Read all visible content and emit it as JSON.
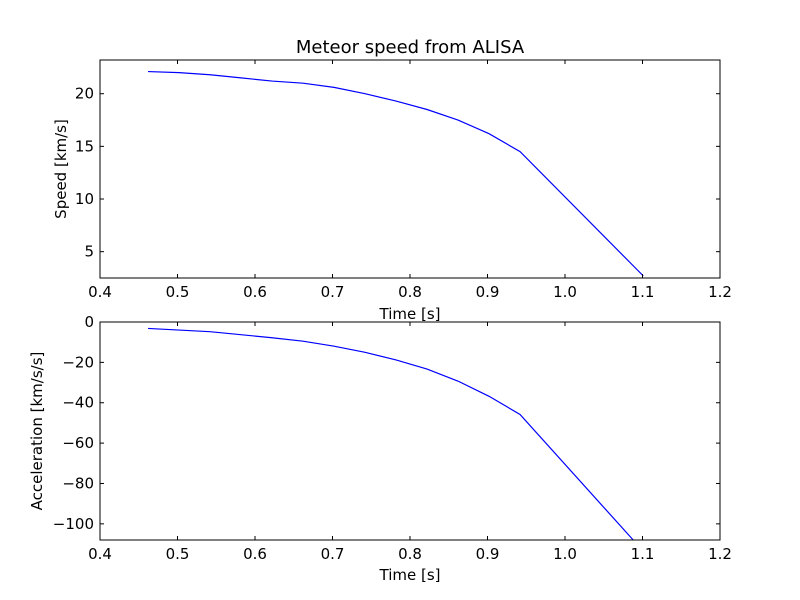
{
  "chart_data": [
    {
      "type": "line",
      "title": "Meteor speed from  ALISA",
      "xlabel": "Time [s]",
      "ylabel": "Speed [km/s]",
      "xlim": [
        0.4,
        1.2
      ],
      "ylim": [
        2.5,
        23.2
      ],
      "xticks": [
        0.4,
        0.5,
        0.6,
        0.7,
        0.8,
        0.9,
        1.0,
        1.1,
        1.2
      ],
      "xtick_labels": [
        "0.4",
        "0.5",
        "0.6",
        "0.7",
        "0.8",
        "0.9",
        "1.0",
        "1.1",
        "1.2"
      ],
      "yticks": [
        5,
        10,
        15,
        20
      ],
      "ytick_labels": [
        "5",
        "10",
        "15",
        "20"
      ],
      "grid": false,
      "series": [
        {
          "color": "#0000ff",
          "x": [
            0.462,
            0.502,
            0.542,
            0.582,
            0.622,
            0.662,
            0.702,
            0.742,
            0.782,
            0.822,
            0.862,
            0.902,
            0.942,
            1.101
          ],
          "y": [
            22.1,
            22.0,
            21.8,
            21.5,
            21.2,
            21.0,
            20.6,
            20.0,
            19.3,
            18.5,
            17.5,
            16.2,
            14.5,
            2.7
          ]
        }
      ]
    },
    {
      "type": "line",
      "xlabel": "Time [s]",
      "ylabel": "Acceleration [km/s/s]",
      "xlim": [
        0.4,
        1.2
      ],
      "ylim": [
        -108,
        0
      ],
      "xticks": [
        0.4,
        0.5,
        0.6,
        0.7,
        0.8,
        0.9,
        1.0,
        1.1,
        1.2
      ],
      "xtick_labels": [
        "0.4",
        "0.5",
        "0.6",
        "0.7",
        "0.8",
        "0.9",
        "1.0",
        "1.1",
        "1.2"
      ],
      "yticks": [
        0,
        -20,
        -40,
        -60,
        -80,
        -100
      ],
      "ytick_labels": [
        "0",
        "−20",
        "−40",
        "−60",
        "−80",
        "−100"
      ],
      "grid": false,
      "series": [
        {
          "color": "#0000ff",
          "x": [
            0.462,
            0.542,
            0.622,
            0.662,
            0.702,
            0.742,
            0.782,
            0.822,
            0.862,
            0.902,
            0.942,
            1.088
          ],
          "y": [
            -3.2,
            -4.8,
            -7.8,
            -9.5,
            -12.0,
            -15.0,
            -18.8,
            -23.3,
            -29.3,
            -36.8,
            -45.8,
            -108
          ]
        }
      ]
    }
  ]
}
